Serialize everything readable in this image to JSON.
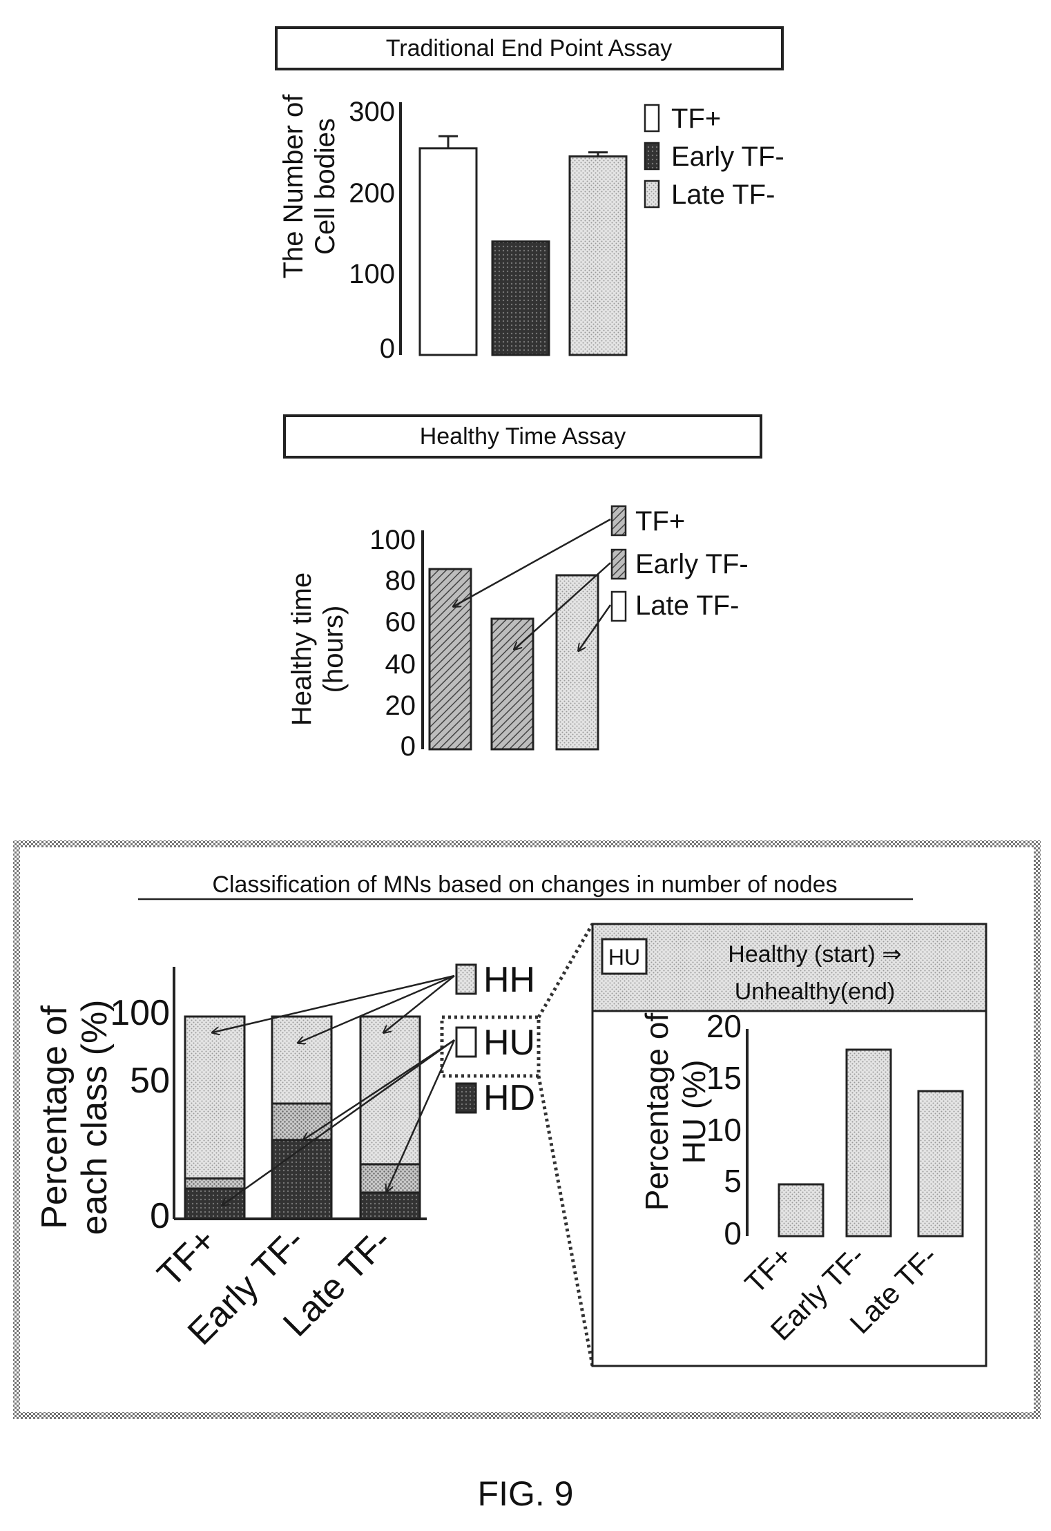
{
  "figure_label": "FIG. 9",
  "chart_data": [
    {
      "type": "bar",
      "title": "Traditional End Point Assay",
      "ylabel_lines": [
        "The Number of",
        "Cell bodies"
      ],
      "categories": [
        "TF+",
        "Early TF-",
        "Late TF-"
      ],
      "values": [
        255,
        140,
        245
      ],
      "error": [
        15,
        0,
        5
      ],
      "ylim": [
        0,
        300
      ],
      "yticks": [
        "0",
        "100",
        "200",
        "300"
      ],
      "legend": [
        "TF+",
        "Early TF-",
        "Late TF-"
      ],
      "legend_placement": "right"
    },
    {
      "type": "bar",
      "title": "Healthy  Time Assay",
      "ylabel_lines": [
        "Healthy time",
        "(hours)"
      ],
      "categories": [
        "TF+",
        "Early TF-",
        "Late TF-"
      ],
      "values": [
        87,
        63,
        84
      ],
      "ylim": [
        0,
        100
      ],
      "yticks": [
        "0",
        "20",
        "40",
        "60",
        "80",
        "100"
      ],
      "legend": [
        "TF+",
        "Early TF-",
        "Late TF-"
      ],
      "legend_placement": "right"
    },
    {
      "type": "bar",
      "stacked": true,
      "title": "Classification of MNs based on changes in number of nodes",
      "ylabel_lines": [
        "Percentage of",
        "each class (%)"
      ],
      "categories": [
        "TF+",
        "Early TF-",
        "Late TF-"
      ],
      "series": [
        {
          "name": "HD",
          "values": [
            15,
            39,
            13
          ]
        },
        {
          "name": "HU",
          "values": [
            5,
            18,
            14
          ]
        },
        {
          "name": "HH",
          "values": [
            80,
            43,
            73
          ]
        }
      ],
      "ylim": [
        0,
        100
      ],
      "yticks": [
        "0",
        "50",
        "100"
      ],
      "legend": [
        "HH",
        "HU",
        "HD"
      ],
      "legend_placement": "right"
    },
    {
      "type": "bar",
      "header_tag": "HU",
      "title_lines": [
        "Healthy (start) ⇒",
        "Unhealthy(end)"
      ],
      "ylabel_lines": [
        "Percentage of",
        "HU (%)"
      ],
      "categories": [
        "TF+",
        "Early TF-",
        "Late TF-"
      ],
      "values": [
        5,
        18,
        14
      ],
      "ylim": [
        0,
        20
      ],
      "yticks": [
        "0",
        "5",
        "10",
        "15",
        "20"
      ]
    }
  ]
}
